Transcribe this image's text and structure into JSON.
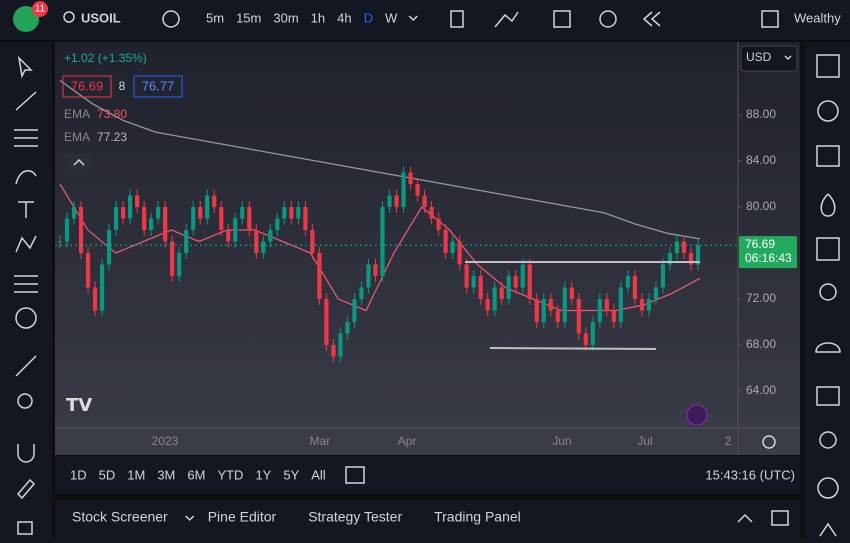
{
  "toolbar": {
    "badge": "11",
    "symbol": "USOIL",
    "intervals": [
      "5m",
      "15m",
      "30m",
      "1h",
      "4h",
      "D",
      "W"
    ],
    "active_interval": "D",
    "account": "Wealthy"
  },
  "legend": {
    "change": "+1.02 (+1.35%)",
    "bid": "76.69",
    "spread": "8",
    "ask": "76.77",
    "indicators": [
      {
        "name": "EMA",
        "value": "73.80",
        "color": "#f7525f"
      },
      {
        "name": "EMA",
        "value": "77.23",
        "color": "#b2b5be"
      }
    ]
  },
  "price_axis": {
    "currency": "USD",
    "ticks": [
      {
        "value": 88,
        "label": "88.00"
      },
      {
        "value": 84,
        "label": "84.00"
      },
      {
        "value": 80,
        "label": "80.00"
      },
      {
        "value": 72,
        "label": "72.00"
      },
      {
        "value": 68,
        "label": "68.00"
      },
      {
        "value": 64,
        "label": "64.00"
      }
    ],
    "last_price": 76.69,
    "countdown": "06:16:43"
  },
  "chart": {
    "ylim": [
      60.78,
      94.09
    ],
    "closes": [
      77,
      79,
      80,
      76,
      73,
      71,
      75,
      78,
      80,
      79,
      81,
      80,
      78,
      79,
      80,
      77,
      74,
      76,
      78,
      80,
      79,
      81,
      80,
      78,
      77,
      79,
      80,
      78,
      76,
      77,
      78,
      79,
      80,
      79,
      80,
      78,
      76,
      72,
      68,
      67,
      69,
      70,
      72,
      73,
      75,
      74,
      80,
      81,
      80,
      83,
      82,
      81,
      80,
      79,
      78,
      76,
      77,
      75,
      73,
      74,
      72,
      71,
      73,
      72,
      74,
      73,
      75,
      72,
      70,
      72,
      71,
      70,
      73,
      72,
      69,
      68,
      70,
      72,
      71,
      70,
      73,
      74,
      72,
      71,
      72,
      73,
      75,
      76,
      77,
      76,
      75,
      76.69
    ],
    "ema_long": [
      91,
      89,
      87.5,
      86.5,
      86,
      85.5,
      85,
      84.5,
      84,
      83.5,
      83,
      82.5,
      82,
      81.5,
      81,
      80.5,
      80,
      79.5,
      78.5,
      77.7,
      77.23
    ],
    "ema_short": [
      82,
      78,
      76,
      77,
      78,
      77,
      78,
      78,
      77,
      76,
      72,
      71,
      76,
      80,
      78,
      75,
      73,
      72,
      71,
      71,
      71,
      71.5,
      72.5,
      73.8
    ]
  },
  "time_axis": [
    "2023",
    "Mar",
    "Apr",
    "Jun",
    "Jul",
    "2"
  ],
  "ranges": [
    "1D",
    "5D",
    "1M",
    "3M",
    "6M",
    "YTD",
    "1Y",
    "5Y",
    "All"
  ],
  "clock": "15:43:16 (UTC)",
  "bottom_tabs": [
    "Stock Screener",
    "Pine Editor",
    "Strategy Tester",
    "Trading Panel"
  ]
}
